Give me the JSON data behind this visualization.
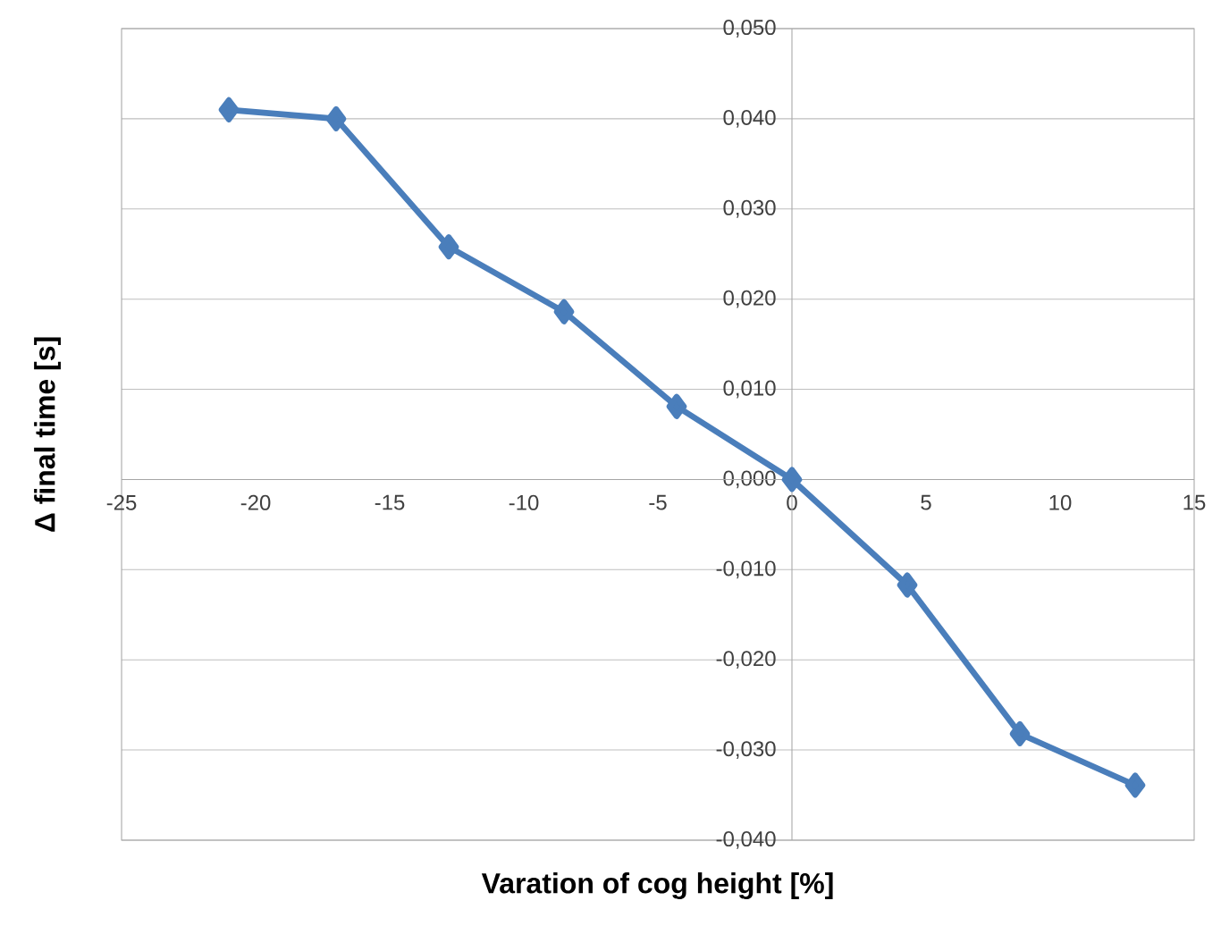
{
  "chart_data": {
    "type": "line",
    "xlabel": "Varation of cog height [%]",
    "ylabel": "Δ final time [s]",
    "x": [
      -21,
      -17,
      -12.8,
      -8.5,
      -4.3,
      0,
      4.3,
      8.5,
      12.8
    ],
    "series": [
      {
        "color": "#4a7ebb",
        "values": [
          0.041,
          0.04,
          0.0258,
          0.0186,
          0.0081,
          0,
          -0.0117,
          -0.0282,
          -0.0339
        ]
      }
    ],
    "xlim": [
      -25,
      15
    ],
    "xticks": [
      -25,
      -20,
      -15,
      -10,
      -5,
      0,
      5,
      10,
      15
    ],
    "ylim": [
      -0.04,
      0.05
    ],
    "yticks": [
      {
        "value": -0.04,
        "label": "-0,040"
      },
      {
        "value": -0.03,
        "label": "-0,030"
      },
      {
        "value": -0.02,
        "label": "-0,020"
      },
      {
        "value": -0.01,
        "label": "-0,010"
      },
      {
        "value": 0,
        "label": "0,000"
      },
      {
        "value": 0.01,
        "label": "0,010"
      },
      {
        "value": 0.02,
        "label": "0,020"
      },
      {
        "value": 0.03,
        "label": "0,030"
      },
      {
        "value": 0.04,
        "label": "0,040"
      },
      {
        "value": 0.05,
        "label": "0,050"
      }
    ],
    "grid": "y",
    "marker": "diamond",
    "line_style": "solid"
  }
}
